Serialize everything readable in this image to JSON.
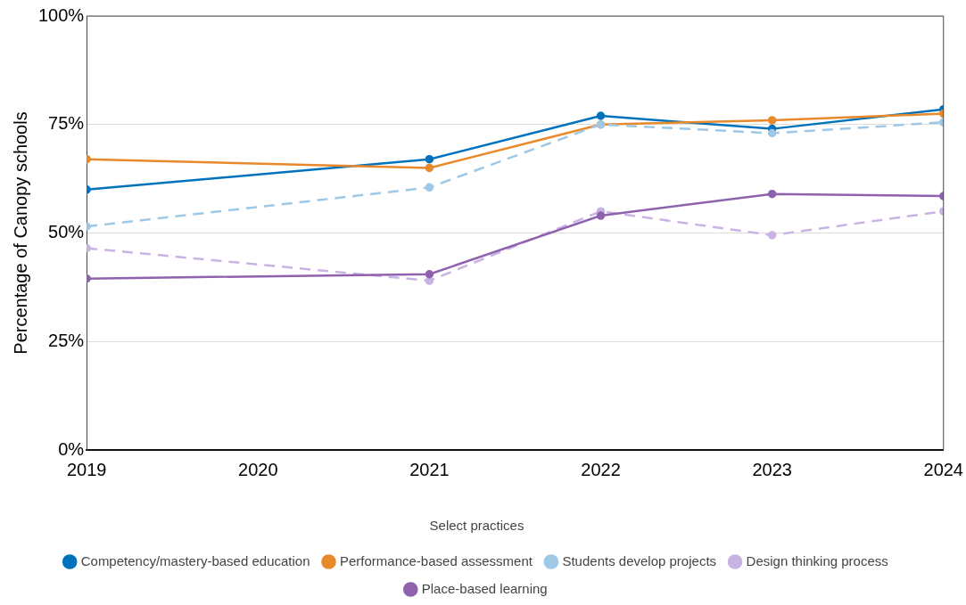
{
  "chart_data": {
    "type": "line",
    "ylabel": "Percentage of Canopy schools",
    "legend_title": "Select practices",
    "legend": "bottom",
    "grid": "y",
    "marker": "circle",
    "x": [
      2019,
      2021,
      2022,
      2023,
      2024
    ],
    "xlim": [
      2019,
      2024
    ],
    "xticks": [
      2019,
      2020,
      2021,
      2022,
      2023,
      2024
    ],
    "ylim": [
      0,
      100
    ],
    "yticks": [
      {
        "value": 0,
        "label": "0%"
      },
      {
        "value": 25,
        "label": "25%"
      },
      {
        "value": 50,
        "label": "50%"
      },
      {
        "value": 75,
        "label": "75%"
      },
      {
        "value": 100,
        "label": "100%"
      }
    ],
    "series": [
      {
        "name": "Competency/mastery-based education",
        "color": "#0072bc",
        "line_style": "solid",
        "values": [
          60,
          67,
          77,
          74,
          78.5
        ]
      },
      {
        "name": "Performance-based assessment",
        "color": "#e8892b",
        "line_style": "solid",
        "values": [
          67,
          65,
          75,
          76,
          77.5
        ]
      },
      {
        "name": "Students develop projects",
        "color": "#9ec8e6",
        "line_style": "dashed",
        "values": [
          51.5,
          60.5,
          75,
          73,
          75.5
        ]
      },
      {
        "name": "Design thinking process",
        "color": "#c9b3e3",
        "line_style": "dashed",
        "values": [
          46.5,
          39,
          55,
          49.5,
          55
        ]
      },
      {
        "name": "Place-based learning",
        "color": "#8f62ad",
        "line_style": "solid",
        "values": [
          39.5,
          40.5,
          54,
          59,
          58.5
        ]
      }
    ]
  }
}
